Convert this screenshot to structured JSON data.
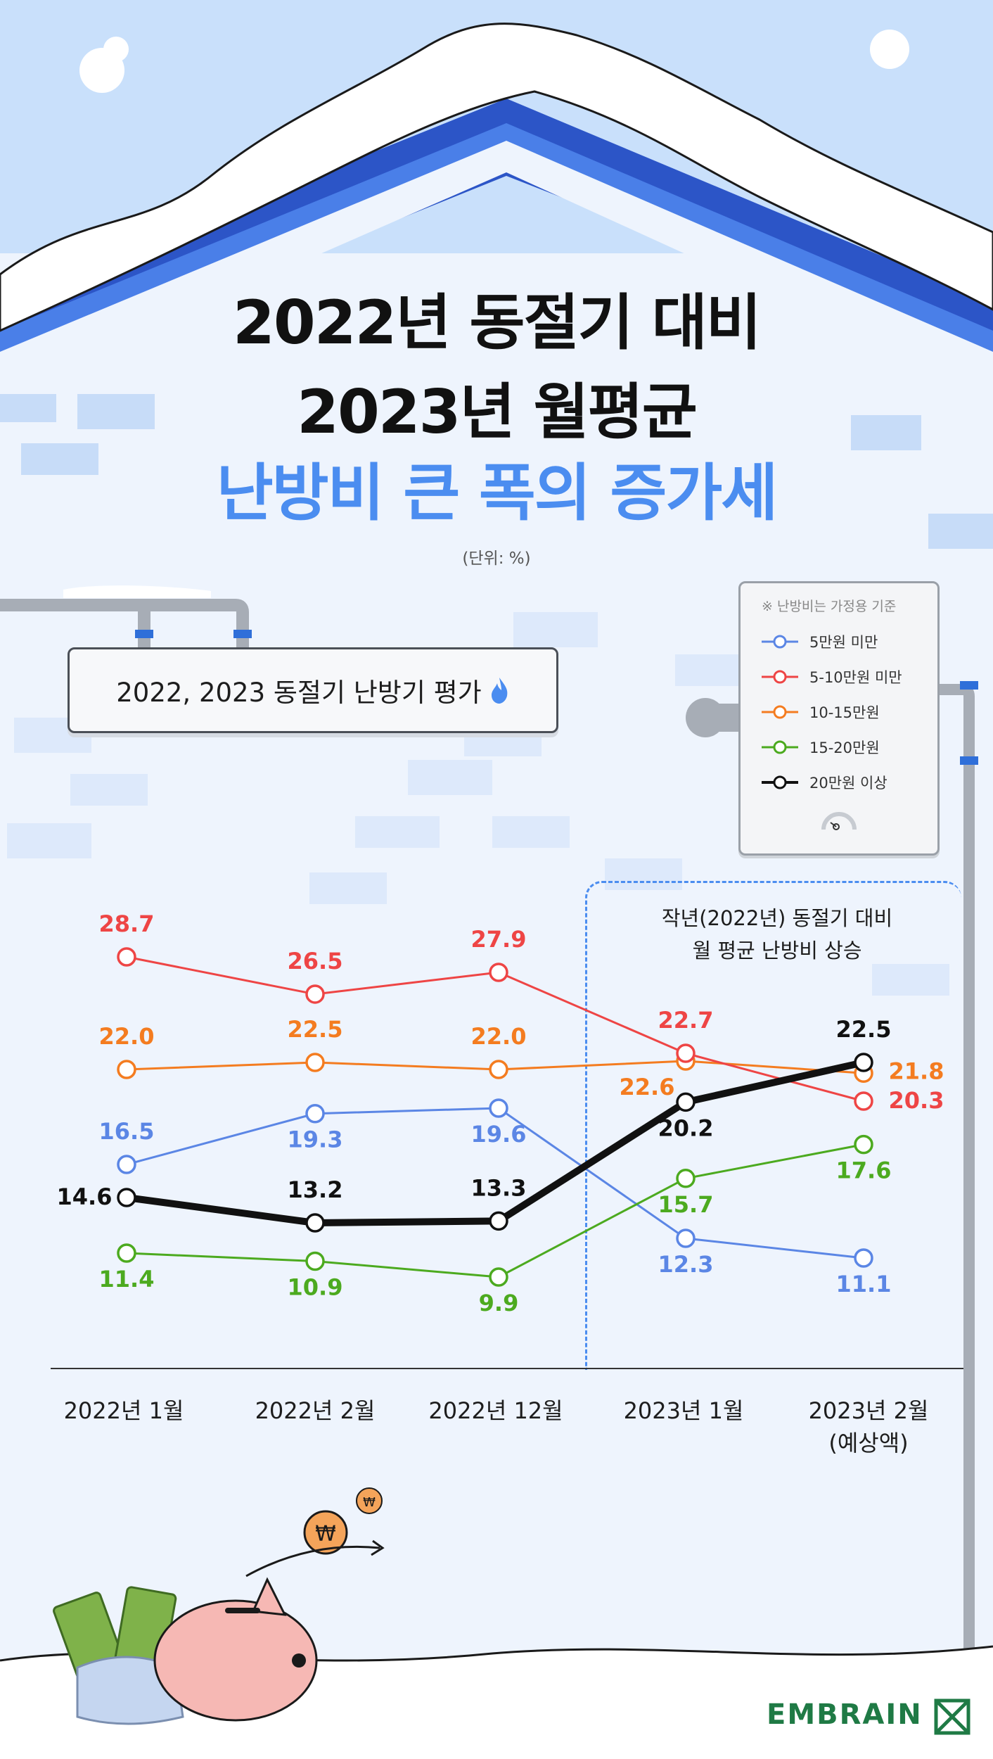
{
  "title": {
    "line1": "2022년 동절기 대비",
    "line2": "2023년 월평균",
    "line3": "난방비 큰 폭의 증가세"
  },
  "unit_note": "(단위: %)",
  "chart_title": "2022, 2023 동절기 난방기 평가",
  "legend_note": "※ 난방비는 가정용 기준",
  "highlight": {
    "line1": "작년(2022년) 동절기 대비",
    "line2": "월 평균 난방비 상승"
  },
  "x_label_sub": "(예상액)",
  "brand": "EMBRAIN",
  "colors": {
    "title_accent": "#4b8df0",
    "brand": "#1f7a45"
  },
  "chart_data": {
    "type": "line",
    "categories": [
      "2022년 1월",
      "2022년 2월",
      "2022년 12월",
      "2023년 1월",
      "2023년 2월"
    ],
    "series": [
      {
        "name": "5만원 미만",
        "color": "#5b86e5",
        "values": [
          16.5,
          19.3,
          19.6,
          12.3,
          11.1
        ]
      },
      {
        "name": "5-10만원 미만",
        "color": "#ee4545",
        "values": [
          28.7,
          26.5,
          27.9,
          22.7,
          20.3
        ]
      },
      {
        "name": "10-15만원",
        "color": "#f47c20",
        "values": [
          22.0,
          22.5,
          22.0,
          22.6,
          21.8
        ]
      },
      {
        "name": "15-20만원",
        "color": "#4caa1f",
        "values": [
          11.4,
          10.9,
          9.9,
          15.7,
          17.6
        ]
      },
      {
        "name": "20만원 이상",
        "color": "#111111",
        "values": [
          14.6,
          13.2,
          13.3,
          20.2,
          22.5
        ]
      }
    ],
    "ylabel": "",
    "unit": "%",
    "legend_position": "top-right",
    "grid": false
  }
}
